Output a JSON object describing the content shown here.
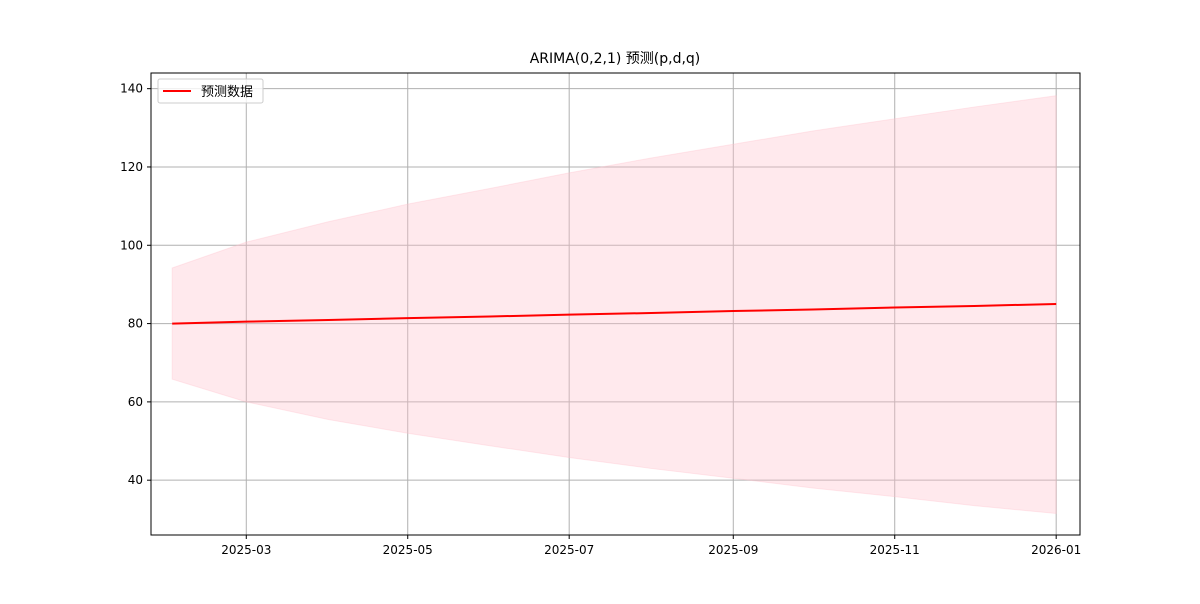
{
  "chart_data": {
    "type": "line",
    "title": "ARIMA(0,2,1) 预测(p,d,q)",
    "xlabel": "",
    "ylabel": "",
    "x_ticks": [
      "2025-03",
      "2025-05",
      "2025-07",
      "2025-09",
      "2025-11",
      "2026-01"
    ],
    "y_ticks": [
      40,
      60,
      80,
      100,
      120,
      140
    ],
    "xlim": [
      "2025-01-24",
      "2026-01-10"
    ],
    "ylim": [
      26,
      144
    ],
    "grid": true,
    "legend": {
      "placement": "top-left",
      "entries": [
        "预测数据"
      ]
    },
    "series": [
      {
        "name": "预测数据",
        "color": "#ff0000",
        "x": [
          "2025-02-01",
          "2025-03-01",
          "2025-04-01",
          "2025-05-01",
          "2025-06-01",
          "2025-07-01",
          "2025-08-01",
          "2025-09-01",
          "2025-10-01",
          "2025-11-01",
          "2025-12-01",
          "2026-01-01"
        ],
        "y": [
          80.0,
          80.5,
          80.9,
          81.4,
          81.8,
          82.3,
          82.7,
          83.2,
          83.6,
          84.1,
          84.5,
          85.0
        ]
      }
    ],
    "confidence_band": {
      "color": "#ffc0cb",
      "opacity": 0.35,
      "x": [
        "2025-02-01",
        "2025-03-01",
        "2025-04-01",
        "2025-05-01",
        "2025-06-01",
        "2025-07-01",
        "2025-08-01",
        "2025-09-01",
        "2025-10-01",
        "2025-11-01",
        "2025-12-01",
        "2026-01-01"
      ],
      "lower": [
        65.8,
        60.0,
        55.5,
        52.0,
        48.8,
        45.8,
        43.0,
        40.5,
        38.0,
        35.8,
        33.5,
        31.5
      ],
      "upper": [
        94.2,
        100.8,
        106.0,
        110.5,
        114.5,
        118.5,
        122.3,
        125.8,
        129.2,
        132.3,
        135.3,
        138.2
      ]
    }
  }
}
